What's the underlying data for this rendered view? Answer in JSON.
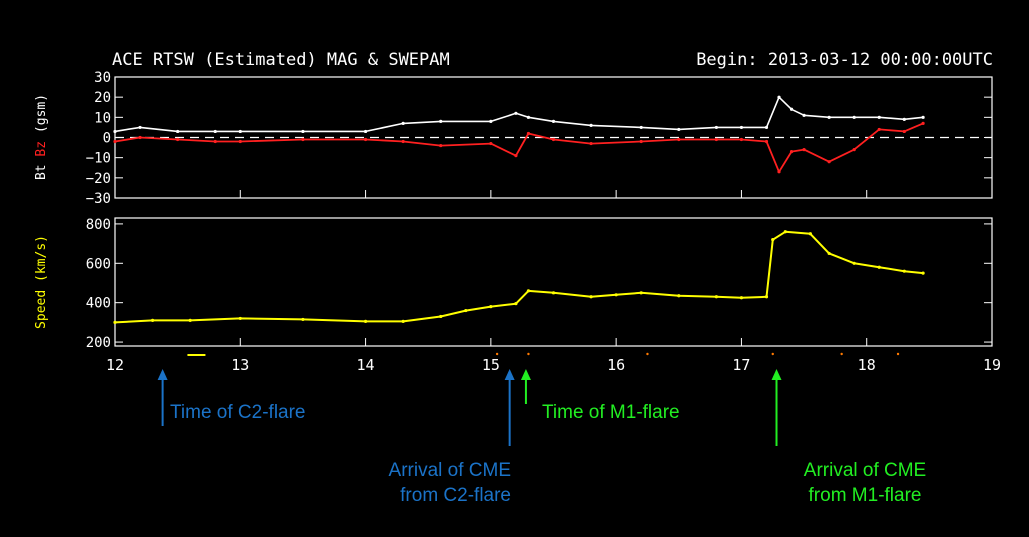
{
  "chart_data": {
    "type": "scatter",
    "title": "ACE RTSW (Estimated) MAG & SWEPAM",
    "begin_text": "Begin: 2013-03-12 00:00:00UTC",
    "x_ticks": [
      "12",
      "13",
      "14",
      "15",
      "16",
      "17",
      "18",
      "19"
    ],
    "xlim": [
      12,
      19
    ],
    "colors": {
      "bt": "#ffffff",
      "bz": "#ff2020",
      "speed": "#ffff00",
      "axes": "#ffffff",
      "blue": "#1b73c8",
      "green": "#22ee22",
      "orange": "#ff7a00"
    },
    "mag_panel": {
      "ylabel_parts": [
        {
          "text": "Bt",
          "color": "#ffffff"
        },
        {
          "text": "Bz",
          "color": "#ff2020"
        },
        {
          "text": "(gsm)",
          "color": "#ffffff"
        }
      ],
      "ylim": [
        -30,
        30
      ],
      "y_ticks": [
        "30",
        "20",
        "10",
        "0",
        "−10",
        "−20",
        "−30"
      ],
      "zero_line": true,
      "bt_series": {
        "name": "Bt",
        "x": [
          12.0,
          12.2,
          12.5,
          12.8,
          13.0,
          13.5,
          14.0,
          14.3,
          14.6,
          15.0,
          15.2,
          15.3,
          15.5,
          15.8,
          16.2,
          16.5,
          16.8,
          17.0,
          17.2,
          17.3,
          17.4,
          17.5,
          17.7,
          17.9,
          18.1,
          18.3,
          18.45
        ],
        "y": [
          3,
          5,
          3,
          3,
          3,
          3,
          3,
          7,
          8,
          8,
          12,
          10,
          8,
          6,
          5,
          4,
          5,
          5,
          5,
          20,
          14,
          11,
          10,
          10,
          10,
          9,
          10
        ]
      },
      "bz_series": {
        "name": "Bz",
        "x": [
          12.0,
          12.2,
          12.5,
          12.8,
          13.0,
          13.5,
          14.0,
          14.3,
          14.6,
          15.0,
          15.2,
          15.3,
          15.5,
          15.8,
          16.2,
          16.5,
          16.8,
          17.0,
          17.2,
          17.3,
          17.4,
          17.5,
          17.7,
          17.9,
          18.1,
          18.3,
          18.45
        ],
        "y": [
          -2,
          0,
          -1,
          -2,
          -2,
          -1,
          -1,
          -2,
          -4,
          -3,
          -9,
          2,
          -1,
          -3,
          -2,
          -1,
          -1,
          -1,
          -2,
          -17,
          -7,
          -6,
          -12,
          -6,
          4,
          3,
          7
        ]
      }
    },
    "speed_panel": {
      "ylabel": "Speed (km/s)",
      "ylim": [
        180,
        830
      ],
      "y_ticks": [
        "800",
        "600",
        "400",
        "200"
      ],
      "series": {
        "name": "Speed",
        "x": [
          12.0,
          12.3,
          12.6,
          13.0,
          13.5,
          14.0,
          14.3,
          14.6,
          14.8,
          15.0,
          15.2,
          15.3,
          15.5,
          15.8,
          16.0,
          16.2,
          16.5,
          16.8,
          17.0,
          17.2,
          17.25,
          17.35,
          17.55,
          17.7,
          17.9,
          18.1,
          18.3,
          18.45
        ],
        "y": [
          300,
          310,
          310,
          320,
          315,
          305,
          305,
          330,
          360,
          380,
          395,
          460,
          450,
          430,
          440,
          450,
          435,
          430,
          425,
          430,
          720,
          760,
          750,
          650,
          600,
          580,
          560,
          550
        ]
      }
    },
    "markers": [
      {
        "x": 12.65,
        "color": "yellow"
      },
      {
        "x": 15.05,
        "color": "orange"
      },
      {
        "x": 15.3,
        "color": "orange"
      },
      {
        "x": 16.25,
        "color": "orange"
      },
      {
        "x": 17.25,
        "color": "orange"
      },
      {
        "x": 17.8,
        "color": "orange"
      },
      {
        "x": 18.25,
        "color": "orange"
      }
    ]
  },
  "annotations": {
    "c2_time": {
      "arrow_x": 12.38,
      "lines": [
        "Time of C2-flare"
      ]
    },
    "cme_c2": {
      "arrow_x": 15.15,
      "lines": [
        "Arrival of CME",
        "from C2-flare"
      ]
    },
    "m1_time": {
      "arrow_x": 15.28,
      "lines": [
        "Time of M1-flare"
      ]
    },
    "cme_m1": {
      "arrow_x": 17.28,
      "lines": [
        "Arrival of CME",
        "from M1-flare"
      ]
    }
  }
}
